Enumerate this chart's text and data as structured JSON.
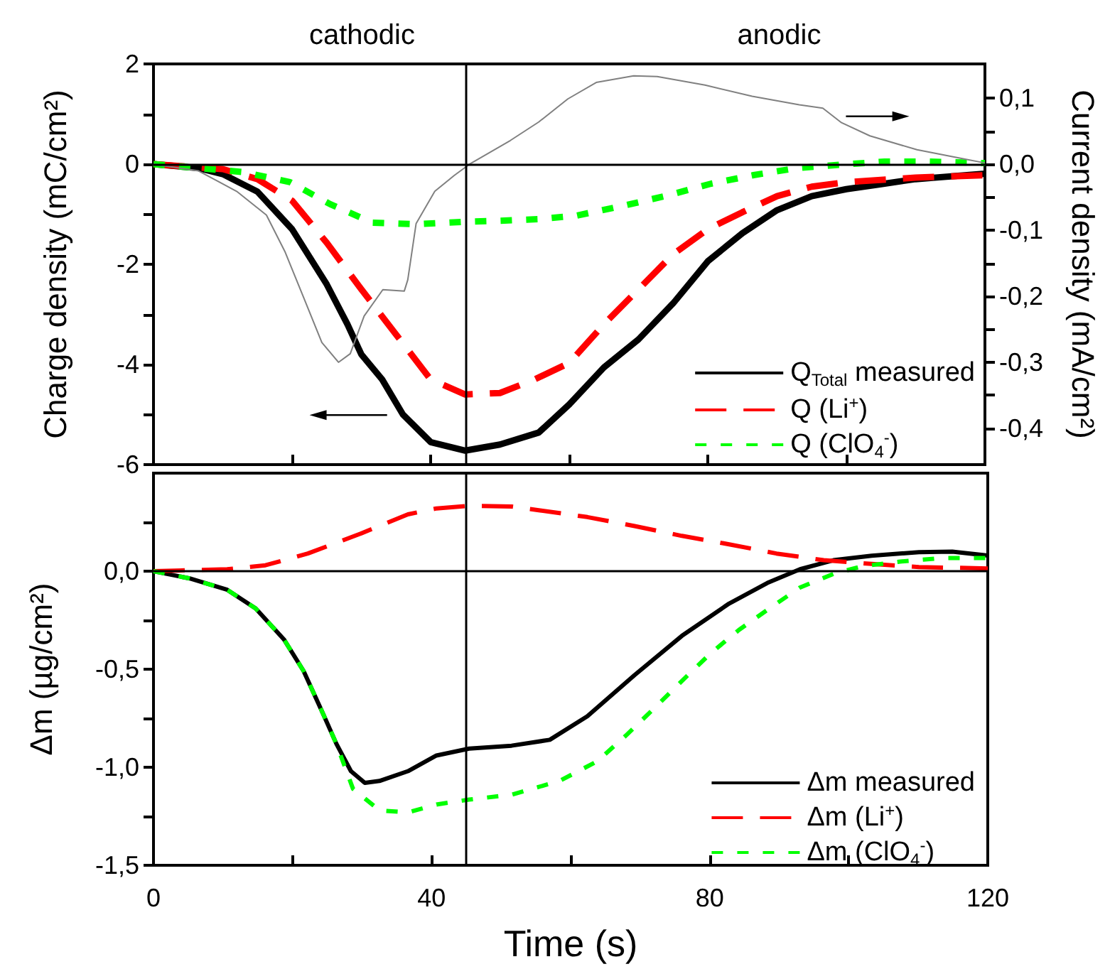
{
  "chart_data": [
    {
      "type": "line",
      "ylabel": "Charge density (mC/cm²)",
      "y2label": "Current density (mA/cm²)",
      "annotations": [
        "cathodic",
        "anodic"
      ],
      "xlim": [
        0,
        120
      ],
      "xticks": [
        0,
        {
          "value": 20,
          "label": null
        },
        40,
        {
          "value": 60,
          "label": null
        },
        80,
        {
          "value": 100,
          "label": null
        },
        120
      ],
      "ylim": [
        -6,
        2
      ],
      "yticks": [
        -6,
        {
          "value": -5,
          "label": null
        },
        -4,
        {
          "value": -3,
          "label": null
        },
        -2,
        {
          "value": -1,
          "label": null
        },
        0,
        {
          "value": 1,
          "label": null
        },
        2
      ],
      "y2lim": [
        -0.455,
        0.152
      ],
      "y2ticks": [
        {
          "value": -0.4,
          "label": "-0,4"
        },
        {
          "value": -0.35,
          "label": null
        },
        {
          "value": -0.3,
          "label": "-0,3"
        },
        {
          "value": -0.25,
          "label": null
        },
        {
          "value": -0.2,
          "label": "-0,2"
        },
        {
          "value": -0.15,
          "label": null
        },
        {
          "value": -0.1,
          "label": "-0,1"
        },
        {
          "value": -0.05,
          "label": null
        },
        {
          "value": 0,
          "label": "0,0"
        },
        {
          "value": 0.05,
          "label": null
        },
        {
          "value": 0.1,
          "label": "0,1"
        }
      ],
      "tick_labels": "y",
      "grid": false,
      "legend": "bottom right",
      "marker": "none",
      "ref_lines": [
        {
          "axis": "x",
          "value": 45,
          "color": "#000000"
        },
        {
          "axis": "y",
          "value": 0,
          "color": "#000000"
        }
      ],
      "series": [
        {
          "name": "Q$_{Total}$ measured",
          "color": "#000000",
          "line_style": "solid",
          "x": [
            0,
            6.5,
            10,
            15,
            20,
            25,
            28,
            30,
            33,
            36,
            40,
            45,
            50,
            55.6,
            60,
            65,
            70,
            75,
            80,
            85,
            90,
            95,
            100,
            105,
            110,
            120
          ],
          "values": [
            0,
            -0.08,
            -0.2,
            -0.55,
            -1.3,
            -2.4,
            -3.2,
            -3.8,
            -4.3,
            -5.0,
            -5.55,
            -5.72,
            -5.6,
            -5.36,
            -4.8,
            -4.06,
            -3.5,
            -2.78,
            -1.94,
            -1.38,
            -0.92,
            -0.64,
            -0.5,
            -0.4,
            -0.3,
            -0.19
          ]
        },
        {
          "name": "Q (Li$^{+}$)",
          "color": "#ff0000",
          "line_style": "dashed",
          "x": [
            0,
            10,
            15,
            20,
            25,
            30,
            35,
            40,
            45,
            50,
            55,
            60,
            65,
            70,
            75,
            80,
            85,
            90,
            95,
            100,
            110,
            120
          ],
          "values": [
            0,
            -0.1,
            -0.3,
            -0.73,
            -1.57,
            -2.5,
            -3.4,
            -4.3,
            -4.6,
            -4.57,
            -4.3,
            -3.97,
            -3.2,
            -2.5,
            -1.8,
            -1.3,
            -0.96,
            -0.64,
            -0.45,
            -0.36,
            -0.27,
            -0.22
          ]
        },
        {
          "name": "Q (ClO$_{4}$$^{-}$)",
          "color": "#00ff00",
          "line_style": "dotted",
          "x": [
            0,
            13,
            19.7,
            25.5,
            31.6,
            38,
            45,
            50,
            55.6,
            61,
            68.2,
            74.4,
            80.5,
            86.6,
            92.8,
            99.3,
            105.5,
            111.6,
            117.8,
            120
          ],
          "values": [
            0,
            -0.16,
            -0.36,
            -0.8,
            -1.17,
            -1.2,
            -1.15,
            -1.13,
            -1.1,
            -1.03,
            -0.82,
            -0.62,
            -0.39,
            -0.22,
            -0.08,
            -0.01,
            0.05,
            0.05,
            0.03,
            0.02
          ]
        },
        {
          "color": "#808080",
          "line_style": "solid",
          "axis": "y2",
          "x": [
            0,
            6.5,
            12,
            16.3,
            19,
            21.6,
            24.3,
            26.7,
            28.4,
            30.4,
            33.1,
            36.2,
            36.7,
            37.9,
            40.6,
            43.4,
            45.6,
            51.5,
            55.6,
            59.8,
            63.9,
            69.3,
            72.7,
            79.6,
            86.4,
            93.2,
            96.6,
            99.3,
            103.4,
            110.2,
            117,
            120
          ],
          "values": [
            0,
            -0.01,
            -0.041,
            -0.077,
            -0.133,
            -0.2,
            -0.27,
            -0.3,
            -0.287,
            -0.23,
            -0.19,
            -0.192,
            -0.175,
            -0.09,
            -0.041,
            -0.017,
            0,
            0.036,
            0.064,
            0.099,
            0.124,
            0.134,
            0.133,
            0.12,
            0.103,
            0.09,
            0.085,
            0.063,
            0.043,
            0.022,
            0.008,
            0.002
          ]
        }
      ]
    },
    {
      "type": "line",
      "xlabel": "Time (s)",
      "ylabel": "Δm (µg/cm²)",
      "xlim": [
        0,
        120
      ],
      "xticks": [
        0,
        {
          "value": 20,
          "label": null
        },
        40,
        {
          "value": 60,
          "label": null
        },
        80,
        {
          "value": 100,
          "label": null
        },
        120
      ],
      "ylim": [
        -1.5,
        0.5
      ],
      "yticks": [
        {
          "value": -1.5,
          "label": "-1,5"
        },
        {
          "value": -1.25,
          "label": null
        },
        {
          "value": -1,
          "label": "-1,0"
        },
        {
          "value": -0.75,
          "label": null
        },
        {
          "value": -0.5,
          "label": "-0,5"
        },
        {
          "value": -0.25,
          "label": null
        },
        {
          "value": 0,
          "label": "0,0"
        },
        {
          "value": 0.25,
          "label": null
        }
      ],
      "grid": false,
      "legend": "bottom right",
      "marker": "none",
      "ref_lines": [
        {
          "axis": "x",
          "value": 45,
          "color": "#000000"
        },
        {
          "axis": "y",
          "value": 0,
          "color": "#000000"
        }
      ],
      "series": [
        {
          "name": "Δm measured",
          "color": "#000000",
          "line_style": "solid",
          "x": [
            0,
            5.2,
            10.6,
            14.7,
            18.8,
            21.6,
            24.3,
            26.3,
            28.4,
            30.4,
            32.5,
            36.6,
            40.7,
            45.4,
            51.5,
            57,
            62.4,
            69.2,
            76,
            82.8,
            88.3,
            93,
            97.8,
            103.3,
            110.1,
            114.9,
            120
          ],
          "values": [
            0,
            -0.037,
            -0.095,
            -0.19,
            -0.35,
            -0.51,
            -0.72,
            -0.88,
            -1.02,
            -1.08,
            -1.07,
            -1.02,
            -0.94,
            -0.905,
            -0.89,
            -0.86,
            -0.74,
            -0.53,
            -0.33,
            -0.165,
            -0.06,
            0.01,
            0.056,
            0.079,
            0.097,
            0.1,
            0.08
          ]
        },
        {
          "name": "Δm (Li$^{+}$)",
          "color": "#ff0000",
          "line_style": "dashed",
          "x": [
            0,
            10.6,
            16.1,
            22.2,
            29.7,
            36.6,
            40.7,
            45.4,
            51.5,
            55.6,
            62.4,
            69.2,
            76,
            82.8,
            89.6,
            96.4,
            103.3,
            110.1,
            120
          ],
          "values": [
            0,
            0.01,
            0.03,
            0.09,
            0.19,
            0.29,
            0.32,
            0.333,
            0.33,
            0.31,
            0.276,
            0.23,
            0.18,
            0.137,
            0.09,
            0.056,
            0.037,
            0.021,
            0.014
          ]
        },
        {
          "name": "Δm (ClO$_{4}$$^{-}$)",
          "color": "#00ff00",
          "line_style": "dotted",
          "x": [
            0,
            5.2,
            10.6,
            14.7,
            18.8,
            21.6,
            24.3,
            26.3,
            28.7,
            32.5,
            36.6,
            40.7,
            45.4,
            51.5,
            58.4,
            63.8,
            67.9,
            72,
            76,
            80.1,
            84.2,
            89,
            93,
            97.8,
            101.9,
            107.4,
            113.5,
            120
          ],
          "values": [
            0,
            -0.037,
            -0.095,
            -0.19,
            -0.35,
            -0.51,
            -0.72,
            -0.88,
            -1.11,
            -1.22,
            -1.23,
            -1.19,
            -1.165,
            -1.14,
            -1.07,
            -0.97,
            -0.84,
            -0.7,
            -0.56,
            -0.42,
            -0.3,
            -0.18,
            -0.083,
            -0.014,
            0.025,
            0.049,
            0.067,
            0.067
          ]
        }
      ]
    }
  ]
}
